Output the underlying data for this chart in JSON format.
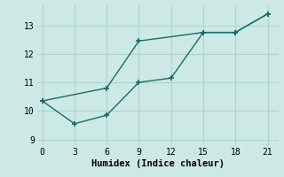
{
  "xlabel": "Humidex (Indice chaleur)",
  "ylabel": "",
  "background_color": "#cce9e5",
  "grid_color": "#afd4cf",
  "line_color": "#1a6b6b",
  "line1_x": [
    0,
    3,
    6,
    9,
    12,
    15,
    18,
    21
  ],
  "line1_y": [
    10.35,
    9.55,
    9.85,
    11.0,
    11.15,
    12.75,
    12.75,
    13.4
  ],
  "line2_x": [
    0,
    6,
    9,
    15,
    18,
    21
  ],
  "line2_y": [
    10.35,
    10.8,
    12.45,
    12.75,
    12.75,
    13.4
  ],
  "xlim": [
    -0.5,
    22
  ],
  "ylim": [
    8.8,
    13.7
  ],
  "xticks": [
    0,
    3,
    6,
    9,
    12,
    15,
    18,
    21
  ],
  "yticks": [
    9,
    10,
    11,
    12,
    13
  ],
  "marker": "+",
  "markersize": 5,
  "linewidth": 1.0,
  "font_family": "monospace",
  "xlabel_fontsize": 7.5,
  "tick_fontsize": 7
}
